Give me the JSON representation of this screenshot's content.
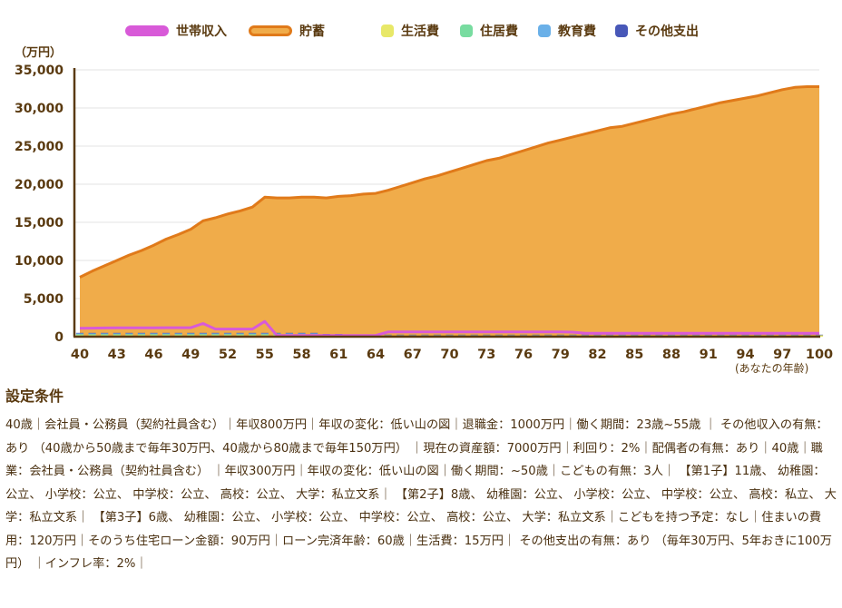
{
  "chart_data": {
    "type": "area",
    "y_unit": "（万円）",
    "x_unit": "(あなたの年齢)",
    "ylim": [
      0,
      35000
    ],
    "yticks": [
      0,
      5000,
      10000,
      15000,
      20000,
      25000,
      30000,
      35000
    ],
    "ytick_labels": [
      "0",
      "5,000",
      "10,000",
      "15,000",
      "20,000",
      "25,000",
      "30,000",
      "35,000"
    ],
    "xlim": [
      40,
      100
    ],
    "xticks": [
      40,
      43,
      46,
      49,
      52,
      55,
      58,
      61,
      64,
      67,
      70,
      73,
      76,
      79,
      82,
      85,
      88,
      91,
      94,
      97,
      100
    ],
    "grid": true,
    "legend_position": "top",
    "line_legend": [
      {
        "name": "世帯収入",
        "color": "#d85ad8"
      },
      {
        "name": "貯蓄",
        "color": "#e07a1a",
        "fill": "#f0ac4a"
      }
    ],
    "bar_legend": [
      {
        "name": "生活費",
        "color": "#e8e868"
      },
      {
        "name": "住居費",
        "color": "#78dca0"
      },
      {
        "name": "教育費",
        "color": "#6ab0e8"
      },
      {
        "name": "その他支出",
        "color": "#4858b8"
      }
    ],
    "series": [
      {
        "name": "貯蓄",
        "x": [
          40,
          41,
          42,
          43,
          44,
          45,
          46,
          47,
          48,
          49,
          50,
          51,
          52,
          53,
          54,
          55,
          56,
          57,
          58,
          59,
          60,
          61,
          62,
          63,
          64,
          65,
          66,
          67,
          68,
          69,
          70,
          71,
          72,
          73,
          74,
          75,
          76,
          77,
          78,
          79,
          80,
          81,
          82,
          83,
          84,
          85,
          86,
          87,
          88,
          89,
          90,
          91,
          92,
          93,
          94,
          95,
          96,
          97,
          98,
          99,
          100
        ],
        "values": [
          7800,
          8600,
          9300,
          10000,
          10700,
          11300,
          12000,
          12800,
          13400,
          14100,
          15200,
          15600,
          16100,
          16500,
          17000,
          18300,
          18200,
          18200,
          18300,
          18300,
          18200,
          18400,
          18500,
          18700,
          18800,
          19200,
          19700,
          20200,
          20700,
          21100,
          21600,
          22100,
          22600,
          23100,
          23400,
          23900,
          24400,
          24900,
          25400,
          25800,
          26200,
          26600,
          27000,
          27400,
          27600,
          28000,
          28400,
          28800,
          29200,
          29500,
          29900,
          30300,
          30700,
          31000,
          31300,
          31600,
          32000,
          32400,
          32700,
          32800,
          32800
        ]
      },
      {
        "name": "世帯収入",
        "x": [
          40,
          41,
          42,
          43,
          44,
          45,
          46,
          47,
          48,
          49,
          50,
          51,
          52,
          53,
          54,
          55,
          56,
          57,
          58,
          59,
          60,
          61,
          62,
          63,
          64,
          65,
          66,
          67,
          68,
          69,
          70,
          71,
          72,
          73,
          74,
          75,
          76,
          77,
          78,
          79,
          80,
          81,
          82,
          83,
          84,
          85,
          86,
          87,
          88,
          89,
          90,
          91,
          92,
          93,
          94,
          95,
          96,
          97,
          98,
          99,
          100
        ],
        "values": [
          1100,
          1120,
          1140,
          1160,
          1160,
          1160,
          1170,
          1180,
          1180,
          1180,
          1730,
          1000,
          1000,
          1000,
          1000,
          2000,
          150,
          150,
          150,
          150,
          150,
          150,
          150,
          150,
          150,
          620,
          620,
          620,
          620,
          620,
          620,
          620,
          620,
          620,
          620,
          620,
          620,
          620,
          620,
          620,
          600,
          440,
          440,
          440,
          440,
          440,
          440,
          440,
          440,
          440,
          440,
          440,
          440,
          440,
          440,
          440,
          440,
          440,
          440,
          440,
          440
        ]
      }
    ]
  },
  "conditions": {
    "title": "設定条件",
    "text": "40歳｜会社員・公務員（契約社員含む）｜年収800万円｜年収の変化：低い山の図｜退職金：1000万円｜働く期間：23歳~55歳 ｜ その他収入の有無：あり （40歳から50歳まで毎年30万円、40歳から80歳まで毎年150万円） ｜現在の資産額：7000万円｜利回り：2%｜配偶者の有無：あり｜40歳｜職業：会社員・公務員（契約社員含む） ｜年収300万円｜年収の変化：低い山の図｜働く期間：~50歳｜こどもの有無：3人｜ 【第1子】11歳、 幼稚園：公立、 小学校：公立、 中学校：公立、 高校：公立、 大学：私立文系｜ 【第2子】8歳、 幼稚園：公立、 小学校：公立、 中学校：公立、 高校：私立、 大学：私立文系｜ 【第3子】6歳、 幼稚園：公立、 小学校：公立、 中学校：公立、 高校：公立、 大学：私立文系｜こどもを持つ予定：なし｜住まいの費用：120万円｜そのうち住宅ローン金額：90万円｜ローン完済年齢：60歳｜生活費：15万円｜ その他支出の有無：あり （毎年30万円、5年おきに100万円） ｜インフレ率：2%｜"
  }
}
